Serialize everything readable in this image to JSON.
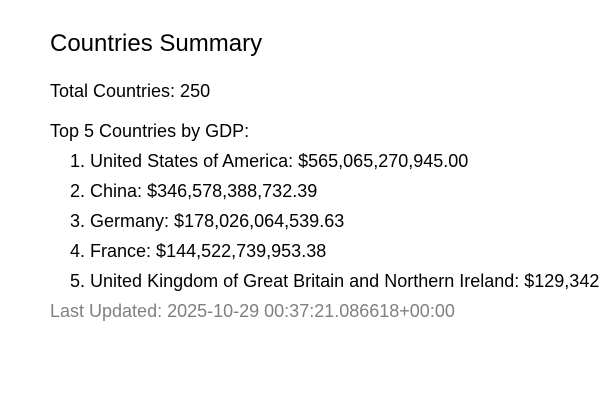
{
  "page": {
    "title": "Countries Summary",
    "total_label": "Total Countries: 250",
    "top_title": "Top 5 Countries by GDP:",
    "top_countries": [
      {
        "rank": "1.",
        "text": "United States of America: $565,065,270,945.00"
      },
      {
        "rank": "2.",
        "text": "China: $346,578,388,732.39"
      },
      {
        "rank": "3.",
        "text": "Germany: $178,026,064,539.63"
      },
      {
        "rank": "4.",
        "text": "France: $144,522,739,953.38"
      },
      {
        "rank": "5.",
        "text": "United Kingdom of Great Britain and Northern Ireland: $129,342"
      }
    ],
    "last_updated": "Last Updated: 2025-10-29 00:37:21.086618+00:00"
  },
  "colors": {
    "text": "#000000",
    "muted": "#808080",
    "background": "#ffffff"
  }
}
